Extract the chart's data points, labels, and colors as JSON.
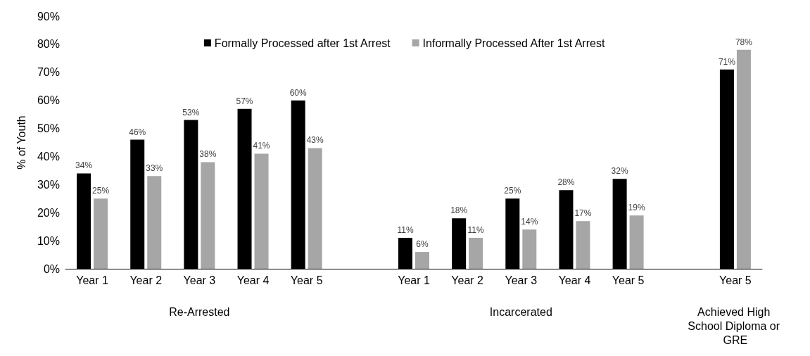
{
  "chart_data": {
    "type": "bar",
    "categories": [
      "Year 1",
      "Year 2",
      "Year 3",
      "Year 4",
      "Year 5",
      null,
      "Year 1",
      "Year 2",
      "Year 3",
      "Year 4",
      "Year 5",
      null,
      "Year 5"
    ],
    "series": [
      {
        "name": "Formally Processed after 1st Arrest",
        "color": "#000000",
        "values": [
          34,
          46,
          53,
          57,
          60,
          null,
          11,
          18,
          25,
          28,
          32,
          null,
          71
        ],
        "value_labels": [
          "34%",
          "46%",
          "53%",
          "57%",
          "60%",
          null,
          "11%",
          "18%",
          "25%",
          "28%",
          "32%",
          null,
          "71%"
        ]
      },
      {
        "name": "Informally Processed After 1st Arrest",
        "color": "#a6a6a6",
        "values": [
          25,
          33,
          38,
          41,
          43,
          null,
          6,
          11,
          14,
          17,
          19,
          null,
          78
        ],
        "value_labels": [
          "25%",
          "33%",
          "38%",
          "41%",
          "43%",
          null,
          "6%",
          "11%",
          "14%",
          "17%",
          "19%",
          null,
          "78%"
        ]
      }
    ],
    "ylabel": "% of Youth",
    "ylim": [
      0,
      90
    ],
    "yticks": [
      {
        "value": 0,
        "label": "0%"
      },
      {
        "value": 10,
        "label": "10%"
      },
      {
        "value": 20,
        "label": "20%"
      },
      {
        "value": 30,
        "label": "30%"
      },
      {
        "value": 40,
        "label": "40%"
      },
      {
        "value": 50,
        "label": "50%"
      },
      {
        "value": 60,
        "label": "60%"
      },
      {
        "value": 70,
        "label": "70%"
      },
      {
        "value": 80,
        "label": "80%"
      },
      {
        "value": 90,
        "label": "90%"
      }
    ],
    "annotations": [
      "Re-Arrested",
      "Incarcerated",
      "Achieved High School Diploma or GRE"
    ],
    "legend": "top",
    "grid": false
  }
}
